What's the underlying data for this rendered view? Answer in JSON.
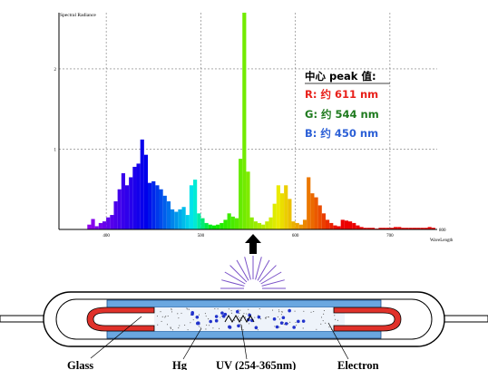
{
  "chart_data": {
    "type": "bar",
    "title": "Spectral Radiance",
    "xlabel": "WaveLength",
    "xlim": [
      350,
      750
    ],
    "ylim": [
      0,
      2.7
    ],
    "x_ticks": [
      "400",
      "500",
      "600",
      "700"
    ],
    "x_end_label": "800",
    "y_ticks": [
      "1",
      "2"
    ],
    "bar_width_nm": 4,
    "bars": [
      [
        380,
        0.06
      ],
      [
        384,
        0.13
      ],
      [
        388,
        0.04
      ],
      [
        392,
        0.08
      ],
      [
        396,
        0.1
      ],
      [
        400,
        0.15
      ],
      [
        404,
        0.18
      ],
      [
        408,
        0.35
      ],
      [
        412,
        0.5
      ],
      [
        416,
        0.7
      ],
      [
        420,
        0.55
      ],
      [
        424,
        0.65
      ],
      [
        428,
        0.78
      ],
      [
        432,
        0.82
      ],
      [
        436,
        1.12
      ],
      [
        440,
        0.93
      ],
      [
        444,
        0.58
      ],
      [
        448,
        0.6
      ],
      [
        452,
        0.55
      ],
      [
        456,
        0.5
      ],
      [
        460,
        0.42
      ],
      [
        464,
        0.35
      ],
      [
        468,
        0.25
      ],
      [
        472,
        0.22
      ],
      [
        476,
        0.25
      ],
      [
        480,
        0.28
      ],
      [
        484,
        0.18
      ],
      [
        488,
        0.55
      ],
      [
        492,
        0.62
      ],
      [
        496,
        0.2
      ],
      [
        500,
        0.14
      ],
      [
        504,
        0.08
      ],
      [
        508,
        0.06
      ],
      [
        512,
        0.05
      ],
      [
        516,
        0.06
      ],
      [
        520,
        0.08
      ],
      [
        524,
        0.12
      ],
      [
        528,
        0.2
      ],
      [
        532,
        0.16
      ],
      [
        536,
        0.14
      ],
      [
        540,
        0.88
      ],
      [
        544,
        2.7
      ],
      [
        548,
        0.72
      ],
      [
        552,
        0.15
      ],
      [
        556,
        0.1
      ],
      [
        560,
        0.08
      ],
      [
        564,
        0.06
      ],
      [
        568,
        0.1
      ],
      [
        572,
        0.15
      ],
      [
        576,
        0.32
      ],
      [
        580,
        0.55
      ],
      [
        584,
        0.45
      ],
      [
        588,
        0.55
      ],
      [
        592,
        0.38
      ],
      [
        596,
        0.1
      ],
      [
        600,
        0.08
      ],
      [
        604,
        0.06
      ],
      [
        608,
        0.12
      ],
      [
        612,
        0.65
      ],
      [
        616,
        0.45
      ],
      [
        620,
        0.4
      ],
      [
        624,
        0.3
      ],
      [
        628,
        0.2
      ],
      [
        632,
        0.12
      ],
      [
        636,
        0.08
      ],
      [
        640,
        0.05
      ],
      [
        644,
        0.04
      ],
      [
        648,
        0.12
      ],
      [
        652,
        0.11
      ],
      [
        656,
        0.1
      ],
      [
        660,
        0.08
      ],
      [
        664,
        0.05
      ],
      [
        668,
        0.03
      ],
      [
        672,
        0.02
      ],
      [
        676,
        0.02
      ],
      [
        680,
        0.02
      ],
      [
        684,
        0.01
      ],
      [
        688,
        0.02
      ],
      [
        692,
        0.02
      ],
      [
        696,
        0.02
      ],
      [
        700,
        0.02
      ],
      [
        704,
        0.03
      ],
      [
        708,
        0.03
      ],
      [
        712,
        0.02
      ],
      [
        716,
        0.02
      ],
      [
        720,
        0.02
      ],
      [
        724,
        0.02
      ],
      [
        728,
        0.02
      ],
      [
        732,
        0.02
      ],
      [
        736,
        0.02
      ],
      [
        740,
        0.03
      ],
      [
        744,
        0.02
      ]
    ],
    "legend": {
      "title": "中心 peak 值:",
      "entries": [
        {
          "text": "R: 约 611 nm",
          "color": "#e8201a"
        },
        {
          "text": "G: 约 544 nm",
          "color": "#1e7a1e"
        },
        {
          "text": "B: 约 450 nm",
          "color": "#2b5fd6"
        }
      ]
    }
  },
  "lamp": {
    "labels": {
      "glass": "Glass",
      "hg": "Hg",
      "uv": "UV (254-365nm)",
      "electron": "Electron"
    }
  }
}
